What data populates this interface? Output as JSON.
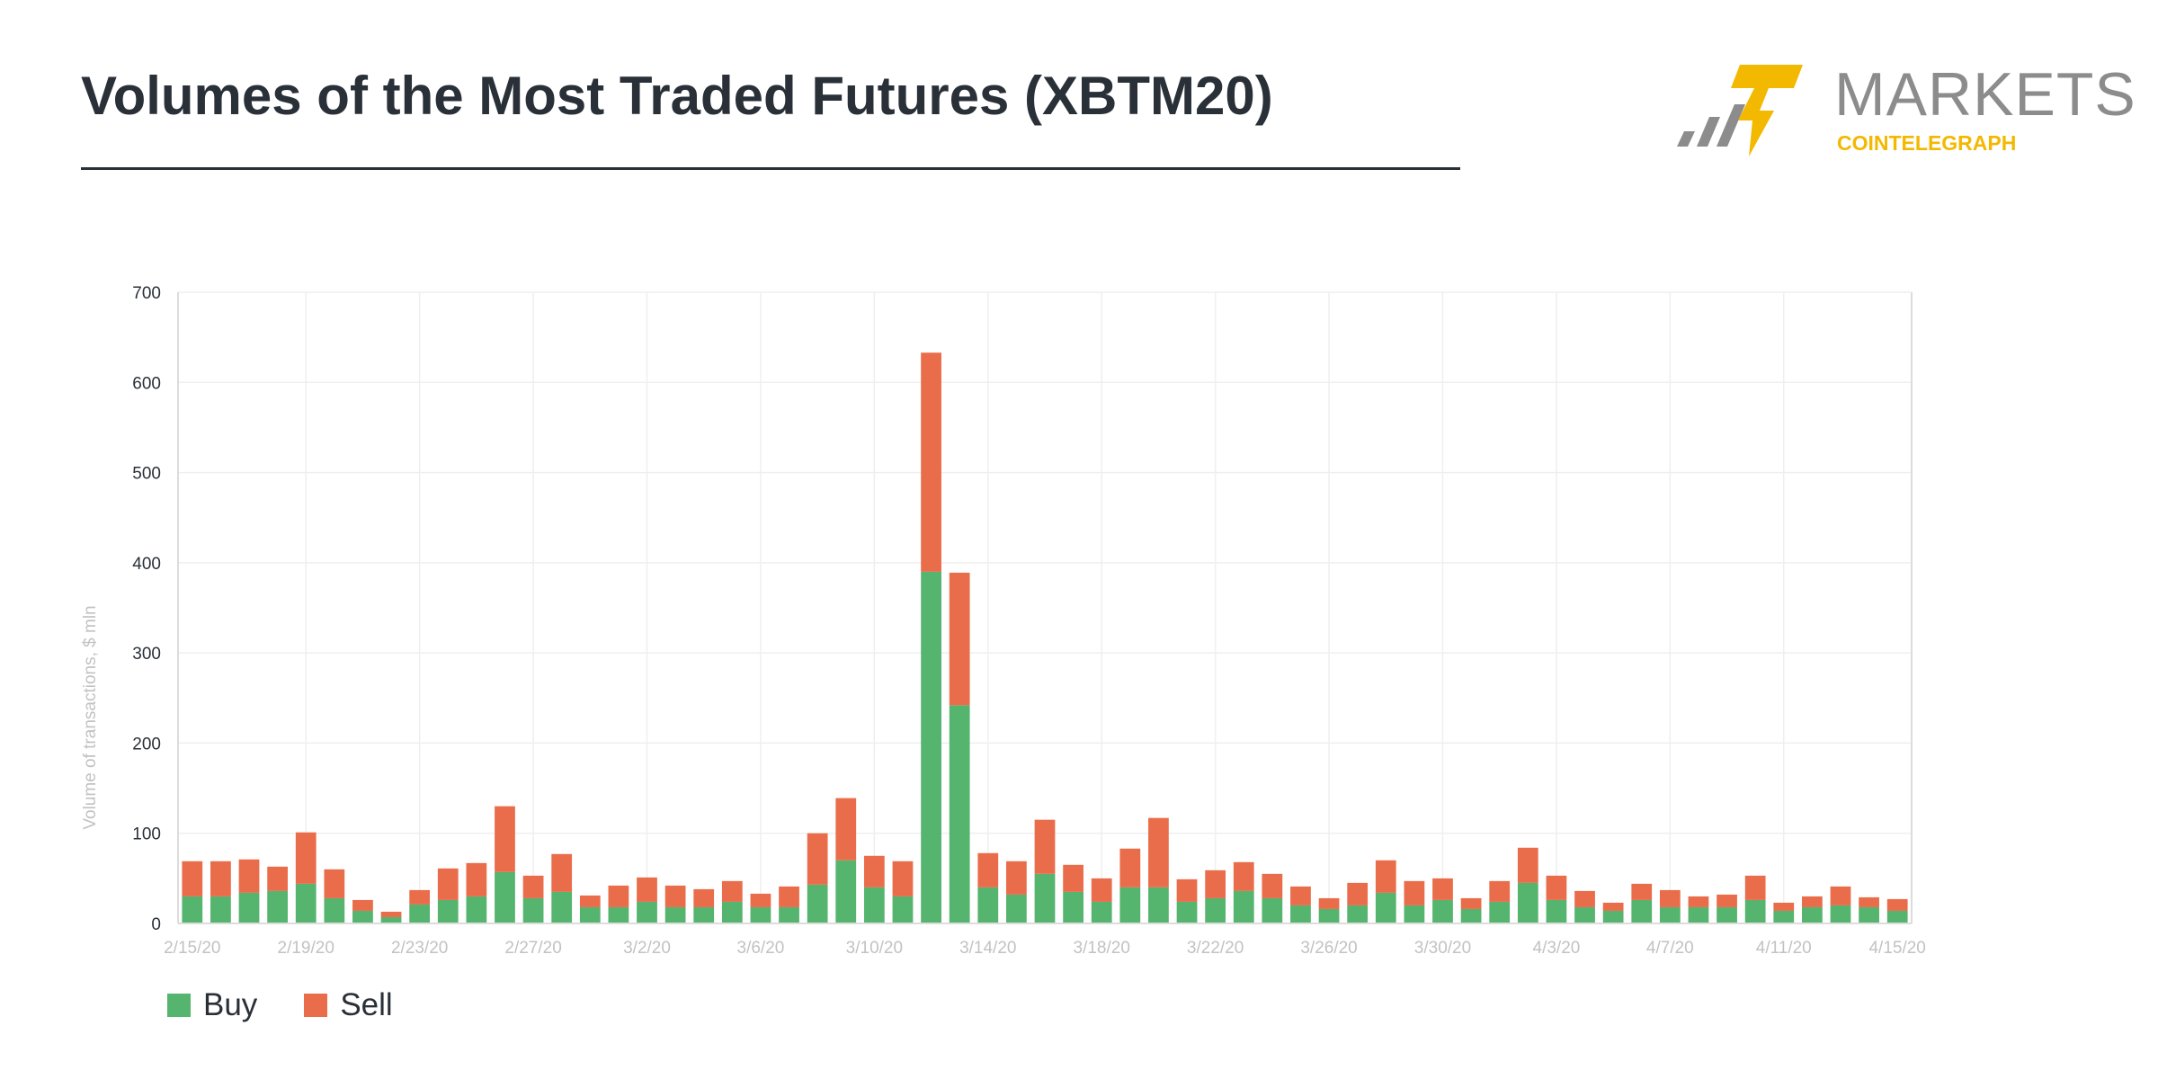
{
  "header": {
    "title": "Volumes of the Most Traded Futures (XBTM20)",
    "logo_word": "MARKETS",
    "logo_sub": "COINTELEGRAPH"
  },
  "colors": {
    "buy": "#55b46e",
    "sell": "#ea6d4b",
    "text": "#2a3038",
    "grid": "#efefef",
    "logo_yellow": "#f3b800",
    "logo_gray": "#8c8c8c"
  },
  "chart_data": {
    "type": "bar",
    "stacked": true,
    "x": [
      "2/15/20",
      "2/16/20",
      "2/17/20",
      "2/18/20",
      "2/19/20",
      "2/20/20",
      "2/21/20",
      "2/22/20",
      "2/23/20",
      "2/24/20",
      "2/25/20",
      "2/26/20",
      "2/27/20",
      "2/28/20",
      "2/29/20",
      "3/1/20",
      "3/2/20",
      "3/3/20",
      "3/4/20",
      "3/5/20",
      "3/6/20",
      "3/7/20",
      "3/8/20",
      "3/9/20",
      "3/10/20",
      "3/11/20",
      "3/12/20",
      "3/13/20",
      "3/14/20",
      "3/15/20",
      "3/16/20",
      "3/17/20",
      "3/18/20",
      "3/19/20",
      "3/20/20",
      "3/21/20",
      "3/22/20",
      "3/23/20",
      "3/24/20",
      "3/25/20",
      "3/26/20",
      "3/27/20",
      "3/28/20",
      "3/29/20",
      "3/30/20",
      "3/31/20",
      "4/1/20",
      "4/2/20",
      "4/3/20",
      "4/4/20",
      "4/5/20",
      "4/6/20",
      "4/7/20",
      "4/8/20",
      "4/9/20",
      "4/10/20",
      "4/11/20",
      "4/12/20",
      "4/13/20",
      "4/14/20",
      "4/15/20"
    ],
    "x_tick_labels": [
      "2/15/20",
      "2/19/20",
      "2/23/20",
      "2/27/20",
      "3/2/20",
      "3/6/20",
      "3/10/20",
      "3/14/20",
      "3/18/20",
      "3/22/20",
      "3/26/20",
      "3/30/20",
      "4/3/20",
      "4/7/20",
      "4/11/20",
      "4/15/20"
    ],
    "series": [
      {
        "name": "Buy",
        "values": [
          30,
          30,
          34,
          36,
          44,
          28,
          14,
          7,
          21,
          26,
          30,
          57,
          28,
          35,
          18,
          18,
          24,
          18,
          18,
          24,
          18,
          18,
          43,
          70,
          40,
          30,
          390,
          242,
          40,
          32,
          55,
          35,
          24,
          40,
          40,
          24,
          28,
          36,
          28,
          20,
          16,
          20,
          34,
          20,
          26,
          16,
          24,
          45,
          26,
          18,
          14,
          26,
          18,
          18,
          18,
          26,
          14,
          18,
          20,
          18,
          14
        ]
      },
      {
        "name": "Sell",
        "values": [
          39,
          39,
          37,
          27,
          57,
          32,
          12,
          6,
          16,
          35,
          37,
          73,
          25,
          42,
          13,
          24,
          27,
          24,
          20,
          23,
          15,
          23,
          57,
          69,
          35,
          39,
          243,
          147,
          38,
          37,
          60,
          30,
          26,
          43,
          77,
          25,
          31,
          32,
          27,
          21,
          12,
          25,
          36,
          27,
          24,
          12,
          23,
          39,
          27,
          18,
          9,
          18,
          19,
          12,
          14,
          27,
          9,
          12,
          21,
          11,
          13
        ]
      }
    ],
    "ylabel": "Volume of transactions, $ mln",
    "ylim": [
      0,
      700
    ],
    "yticks": [
      0,
      100,
      200,
      300,
      400,
      500,
      600,
      700
    ],
    "grid": true,
    "legend": "bottom-left"
  }
}
